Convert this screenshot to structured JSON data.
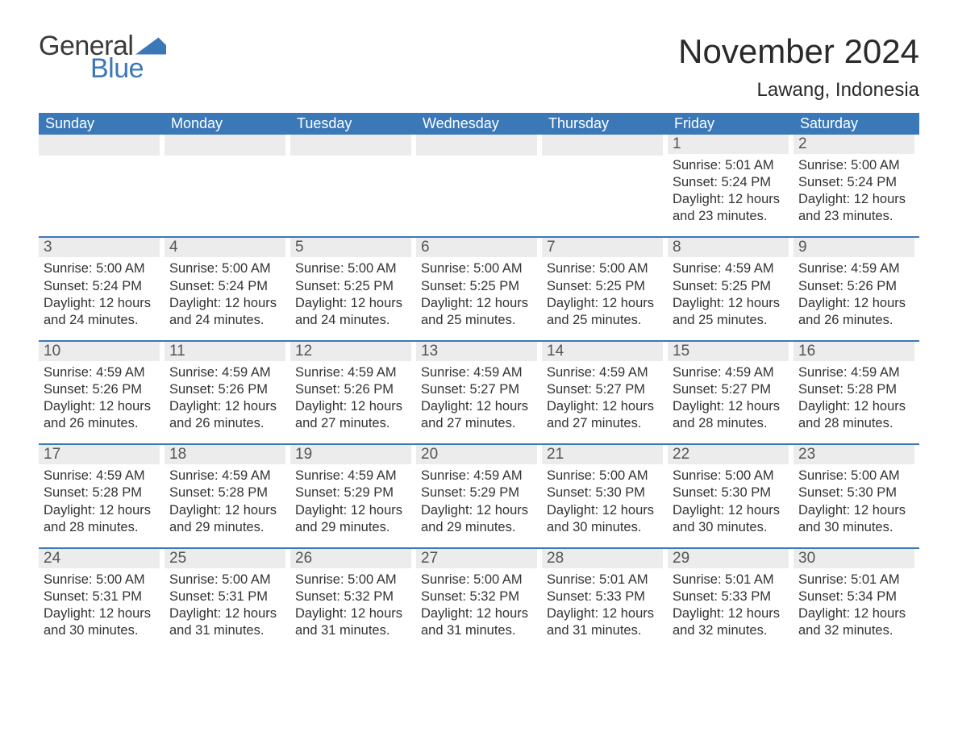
{
  "logo": {
    "word1": "General",
    "word2": "Blue",
    "flag_color": "#3b78b8"
  },
  "title": "November 2024",
  "location": "Lawang, Indonesia",
  "colors": {
    "header_bg": "#3b78b8",
    "header_text": "#ffffff",
    "dayhead_bg": "#ececec",
    "dayhead_text": "#555555",
    "body_text": "#333333",
    "rule": "#3b78b8"
  },
  "typography": {
    "title_fontsize": 42,
    "location_fontsize": 24,
    "dow_fontsize": 18,
    "daynum_fontsize": 19,
    "body_fontsize": 16.5
  },
  "days_of_week": [
    "Sunday",
    "Monday",
    "Tuesday",
    "Wednesday",
    "Thursday",
    "Friday",
    "Saturday"
  ],
  "labels": {
    "sunrise": "Sunrise:",
    "sunset": "Sunset:",
    "daylight": "Daylight:"
  },
  "weeks": [
    [
      null,
      null,
      null,
      null,
      null,
      {
        "n": "1",
        "sunrise": "5:01 AM",
        "sunset": "5:24 PM",
        "daylight": "12 hours and 23 minutes."
      },
      {
        "n": "2",
        "sunrise": "5:00 AM",
        "sunset": "5:24 PM",
        "daylight": "12 hours and 23 minutes."
      }
    ],
    [
      {
        "n": "3",
        "sunrise": "5:00 AM",
        "sunset": "5:24 PM",
        "daylight": "12 hours and 24 minutes."
      },
      {
        "n": "4",
        "sunrise": "5:00 AM",
        "sunset": "5:24 PM",
        "daylight": "12 hours and 24 minutes."
      },
      {
        "n": "5",
        "sunrise": "5:00 AM",
        "sunset": "5:25 PM",
        "daylight": "12 hours and 24 minutes."
      },
      {
        "n": "6",
        "sunrise": "5:00 AM",
        "sunset": "5:25 PM",
        "daylight": "12 hours and 25 minutes."
      },
      {
        "n": "7",
        "sunrise": "5:00 AM",
        "sunset": "5:25 PM",
        "daylight": "12 hours and 25 minutes."
      },
      {
        "n": "8",
        "sunrise": "4:59 AM",
        "sunset": "5:25 PM",
        "daylight": "12 hours and 25 minutes."
      },
      {
        "n": "9",
        "sunrise": "4:59 AM",
        "sunset": "5:26 PM",
        "daylight": "12 hours and 26 minutes."
      }
    ],
    [
      {
        "n": "10",
        "sunrise": "4:59 AM",
        "sunset": "5:26 PM",
        "daylight": "12 hours and 26 minutes."
      },
      {
        "n": "11",
        "sunrise": "4:59 AM",
        "sunset": "5:26 PM",
        "daylight": "12 hours and 26 minutes."
      },
      {
        "n": "12",
        "sunrise": "4:59 AM",
        "sunset": "5:26 PM",
        "daylight": "12 hours and 27 minutes."
      },
      {
        "n": "13",
        "sunrise": "4:59 AM",
        "sunset": "5:27 PM",
        "daylight": "12 hours and 27 minutes."
      },
      {
        "n": "14",
        "sunrise": "4:59 AM",
        "sunset": "5:27 PM",
        "daylight": "12 hours and 27 minutes."
      },
      {
        "n": "15",
        "sunrise": "4:59 AM",
        "sunset": "5:27 PM",
        "daylight": "12 hours and 28 minutes."
      },
      {
        "n": "16",
        "sunrise": "4:59 AM",
        "sunset": "5:28 PM",
        "daylight": "12 hours and 28 minutes."
      }
    ],
    [
      {
        "n": "17",
        "sunrise": "4:59 AM",
        "sunset": "5:28 PM",
        "daylight": "12 hours and 28 minutes."
      },
      {
        "n": "18",
        "sunrise": "4:59 AM",
        "sunset": "5:28 PM",
        "daylight": "12 hours and 29 minutes."
      },
      {
        "n": "19",
        "sunrise": "4:59 AM",
        "sunset": "5:29 PM",
        "daylight": "12 hours and 29 minutes."
      },
      {
        "n": "20",
        "sunrise": "4:59 AM",
        "sunset": "5:29 PM",
        "daylight": "12 hours and 29 minutes."
      },
      {
        "n": "21",
        "sunrise": "5:00 AM",
        "sunset": "5:30 PM",
        "daylight": "12 hours and 30 minutes."
      },
      {
        "n": "22",
        "sunrise": "5:00 AM",
        "sunset": "5:30 PM",
        "daylight": "12 hours and 30 minutes."
      },
      {
        "n": "23",
        "sunrise": "5:00 AM",
        "sunset": "5:30 PM",
        "daylight": "12 hours and 30 minutes."
      }
    ],
    [
      {
        "n": "24",
        "sunrise": "5:00 AM",
        "sunset": "5:31 PM",
        "daylight": "12 hours and 30 minutes."
      },
      {
        "n": "25",
        "sunrise": "5:00 AM",
        "sunset": "5:31 PM",
        "daylight": "12 hours and 31 minutes."
      },
      {
        "n": "26",
        "sunrise": "5:00 AM",
        "sunset": "5:32 PM",
        "daylight": "12 hours and 31 minutes."
      },
      {
        "n": "27",
        "sunrise": "5:00 AM",
        "sunset": "5:32 PM",
        "daylight": "12 hours and 31 minutes."
      },
      {
        "n": "28",
        "sunrise": "5:01 AM",
        "sunset": "5:33 PM",
        "daylight": "12 hours and 31 minutes."
      },
      {
        "n": "29",
        "sunrise": "5:01 AM",
        "sunset": "5:33 PM",
        "daylight": "12 hours and 32 minutes."
      },
      {
        "n": "30",
        "sunrise": "5:01 AM",
        "sunset": "5:34 PM",
        "daylight": "12 hours and 32 minutes."
      }
    ]
  ]
}
